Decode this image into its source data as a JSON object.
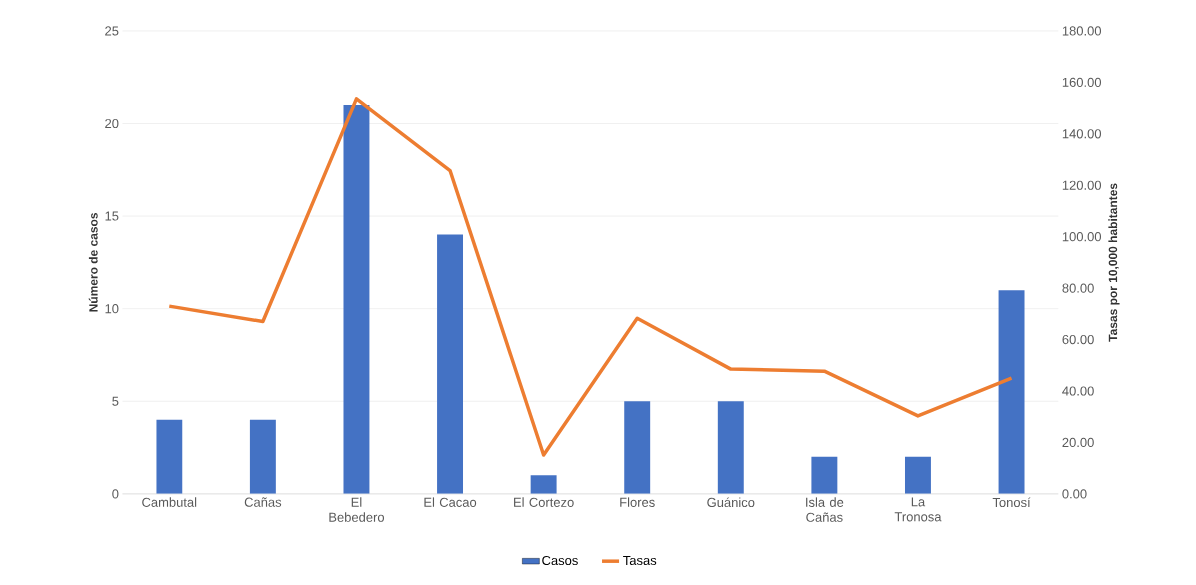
{
  "chart_data": {
    "type": "bar",
    "ylabel": "Número de casos",
    "y2label": "Tasas por 10,000 habitantes",
    "categories": [
      "Cambutal",
      "Cañas",
      "El Bebedero",
      "El Cacao",
      "El Cortezo",
      "Flores",
      "Guánico",
      "Isla de Cañas",
      "La Tronosa",
      "Tonosí"
    ],
    "series": [
      {
        "name": "Casos",
        "color": "#4472c4",
        "values": [
          4,
          4,
          21,
          14,
          1,
          5,
          5,
          2,
          2,
          11
        ]
      },
      {
        "name": "Tasas",
        "type": "line",
        "axis": "y2",
        "color": "#ed7d31",
        "values": [
          73,
          67,
          153.6,
          125.7,
          15.1,
          68.3,
          48.5,
          47.7,
          30.3,
          45
        ]
      }
    ],
    "ylim": [
      0,
      25
    ],
    "yticks": [
      0,
      5,
      10,
      15,
      20,
      25
    ],
    "y2lim": [
      0,
      180
    ],
    "y2ticks": [
      {
        "value": 0,
        "label": "0.00"
      },
      {
        "value": 20,
        "label": "20.00"
      },
      {
        "value": 40,
        "label": "40.00"
      },
      {
        "value": 60,
        "label": "60.00"
      },
      {
        "value": 80,
        "label": "80.00"
      },
      {
        "value": 100,
        "label": "100.00"
      },
      {
        "value": 120,
        "label": "120.00"
      },
      {
        "value": 140,
        "label": "140.00"
      },
      {
        "value": 160,
        "label": "160.00"
      },
      {
        "value": 180,
        "label": "180.00"
      }
    ],
    "grid": "y",
    "legend": "bottom"
  }
}
